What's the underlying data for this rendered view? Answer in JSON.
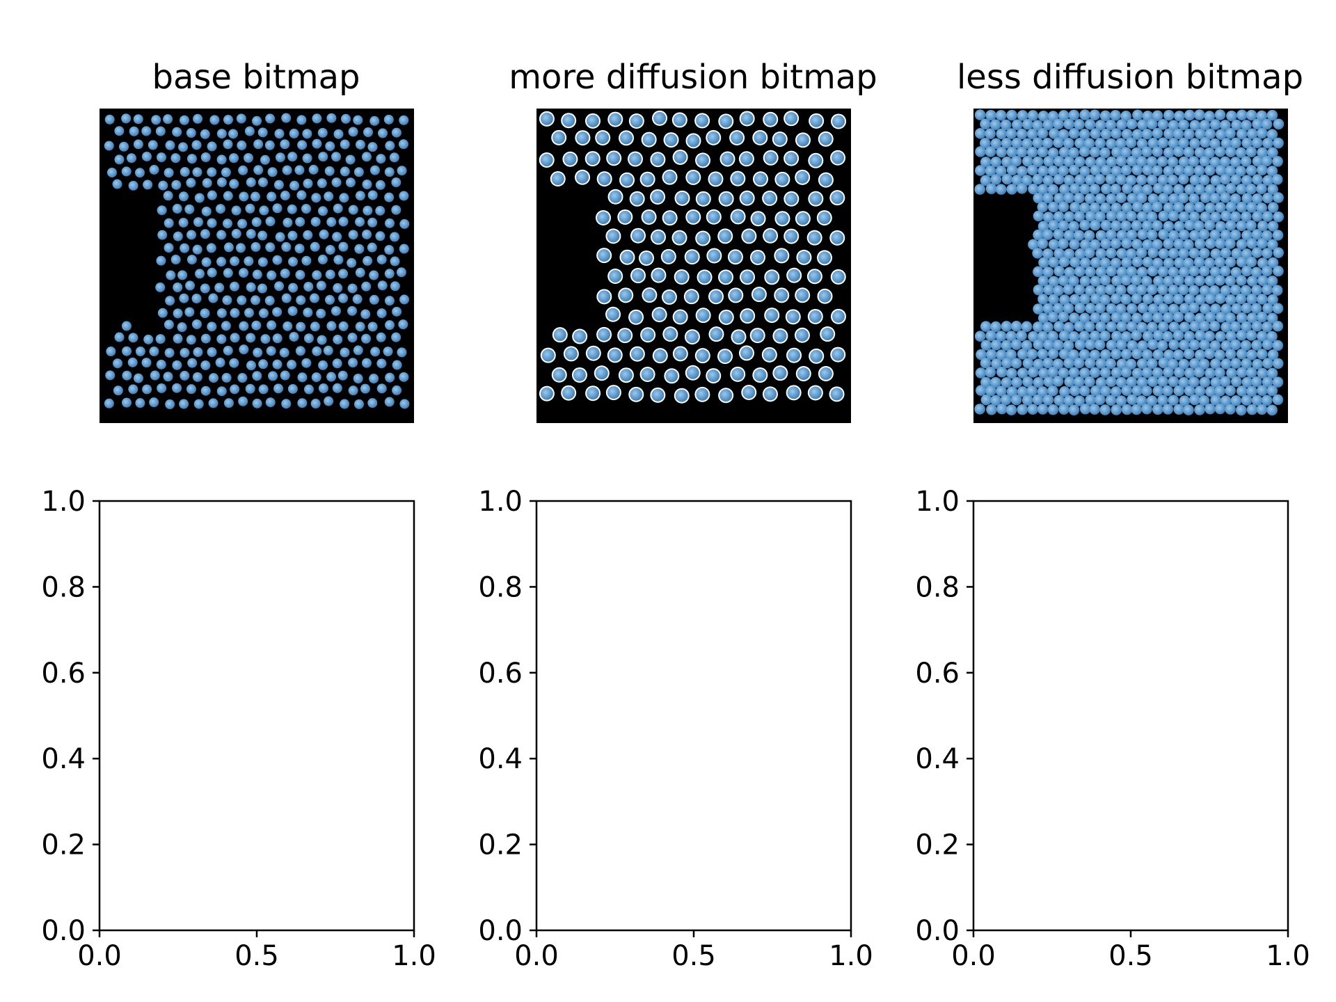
{
  "colors": {
    "particle": "#4a90c8",
    "particle_highlight": "#9cc8ea",
    "background": "#000000",
    "halo": "#ffffff"
  },
  "chart_data": [
    {
      "type": "image",
      "title": "base bitmap",
      "image": {
        "background": "black",
        "particles": "blue disks",
        "spacing": "medium",
        "halo": "none",
        "cutout": "left"
      }
    },
    {
      "type": "image",
      "title": "more diffusion bitmap",
      "image": {
        "background": "black",
        "particles": "blue disks",
        "spacing": "wide",
        "halo": "white",
        "cutout": "left"
      }
    },
    {
      "type": "image",
      "title": "less diffusion bitmap",
      "image": {
        "background": "black",
        "particles": "blue disks",
        "spacing": "tight",
        "halo": "none",
        "cutout": "left"
      }
    },
    {
      "type": "scatter",
      "title": "",
      "xlim": [
        0.0,
        1.0
      ],
      "ylim": [
        0.0,
        1.0
      ],
      "xticks": [
        "0.0",
        "0.5",
        "1.0"
      ],
      "yticks": [
        "0.0",
        "0.2",
        "0.4",
        "0.6",
        "0.8",
        "1.0"
      ],
      "series": []
    },
    {
      "type": "scatter",
      "title": "",
      "xlim": [
        0.0,
        1.0
      ],
      "ylim": [
        0.0,
        1.0
      ],
      "xticks": [
        "0.0",
        "0.5",
        "1.0"
      ],
      "yticks": [
        "0.0",
        "0.2",
        "0.4",
        "0.6",
        "0.8",
        "1.0"
      ],
      "series": []
    },
    {
      "type": "scatter",
      "title": "",
      "xlim": [
        0.0,
        1.0
      ],
      "ylim": [
        0.0,
        1.0
      ],
      "xticks": [
        "0.0",
        "0.5",
        "1.0"
      ],
      "yticks": [
        "0.0",
        "0.2",
        "0.4",
        "0.6",
        "0.8",
        "1.0"
      ],
      "series": []
    }
  ]
}
